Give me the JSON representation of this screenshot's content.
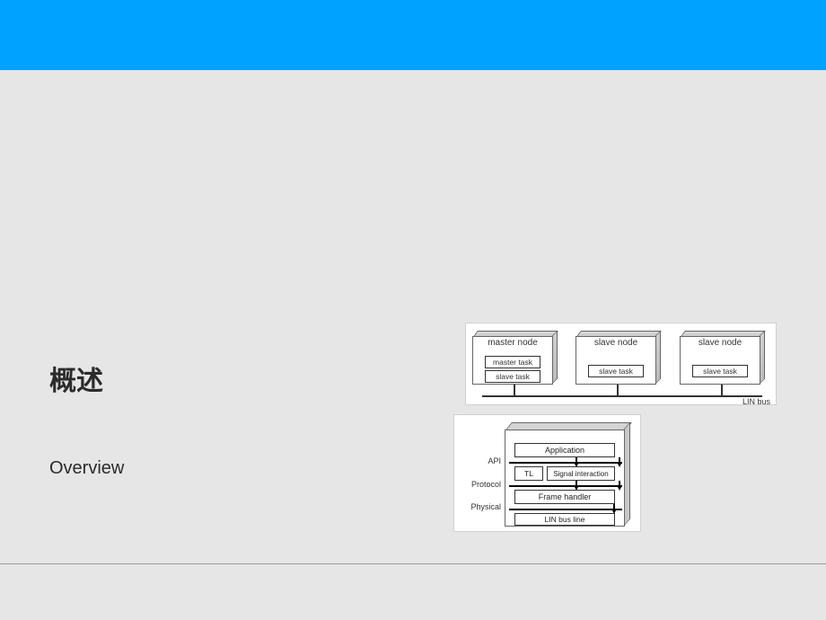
{
  "header": {
    "bar_color": "#00a2ff"
  },
  "headings": {
    "cn": "概述",
    "en": "Overview"
  },
  "bus_diagram": {
    "type": "network",
    "background_color": "#ffffff",
    "border_color": "#d0d0d0",
    "node_border_color": "#666666",
    "node_shade_color": "#d0d0d0",
    "bus_line_color": "#333333",
    "nodes": [
      {
        "title": "master node",
        "tasks": [
          "master task",
          "slave task"
        ]
      },
      {
        "title": "slave node",
        "tasks": [
          "slave task"
        ]
      },
      {
        "title": "slave node",
        "tasks": [
          "slave task"
        ]
      }
    ],
    "bus_label": "LIN bus",
    "title_fontsize": 10,
    "task_fontsize": 8.5
  },
  "stack_diagram": {
    "type": "layered-stack",
    "background_color": "#ffffff",
    "border_color": "#d0d0d0",
    "box_border_color": "#666666",
    "box_shade_color": "#c8c8c8",
    "separator_color": "#000000",
    "layers": {
      "application": "Application",
      "tl": "TL",
      "signal": "Signal interaction",
      "frame": "Frame handler",
      "physical": "LIN bus line"
    },
    "side_labels": {
      "api": "API",
      "protocol": "Protocol",
      "physical": "Physical"
    },
    "label_fontsize": 9,
    "layer_fontsize": 9
  }
}
